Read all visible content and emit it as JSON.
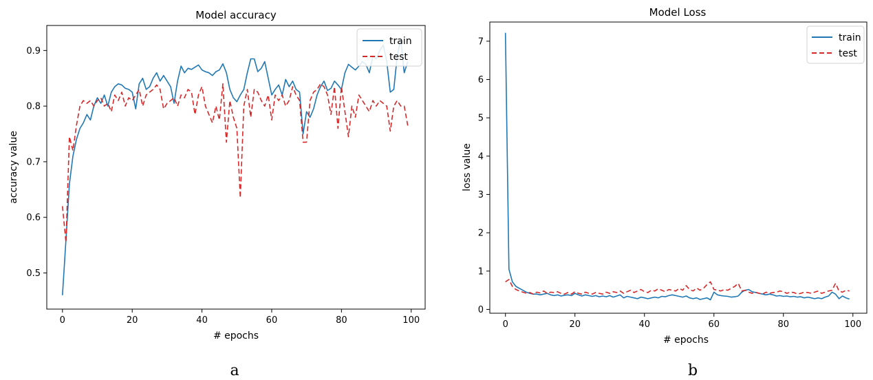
{
  "chart_data": [
    {
      "type": "line",
      "title": "Model accuracy",
      "xlabel": "# epochs",
      "ylabel": "accuracy value",
      "xlim": [
        -4.5,
        104
      ],
      "ylim": [
        0.435,
        0.945
      ],
      "xticks": [
        0,
        20,
        40,
        60,
        80,
        100
      ],
      "yticks": [
        0.5,
        0.6,
        0.7,
        0.8,
        0.9
      ],
      "xtick_labels": [
        "0",
        "20",
        "40",
        "60",
        "80",
        "100"
      ],
      "ytick_labels": [
        "0.5",
        "0.6",
        "0.7",
        "0.8",
        "0.9"
      ],
      "legend_position": "top-right",
      "caption": "a",
      "series": [
        {
          "name": "train",
          "color": "#1f77b4",
          "style": "solid",
          "x": [
            0,
            1,
            2,
            3,
            4,
            5,
            6,
            7,
            8,
            9,
            10,
            11,
            12,
            13,
            14,
            15,
            16,
            17,
            18,
            19,
            20,
            21,
            22,
            23,
            24,
            25,
            26,
            27,
            28,
            29,
            30,
            31,
            32,
            33,
            34,
            35,
            36,
            37,
            38,
            39,
            40,
            41,
            42,
            43,
            44,
            45,
            46,
            47,
            48,
            49,
            50,
            51,
            52,
            53,
            54,
            55,
            56,
            57,
            58,
            59,
            60,
            61,
            62,
            63,
            64,
            65,
            66,
            67,
            68,
            69,
            70,
            71,
            72,
            73,
            74,
            75,
            76,
            77,
            78,
            79,
            80,
            81,
            82,
            83,
            84,
            85,
            86,
            87,
            88,
            89,
            90,
            91,
            92,
            93,
            94,
            95,
            96,
            97,
            98,
            99
          ],
          "y": [
            0.46,
            0.56,
            0.66,
            0.71,
            0.74,
            0.76,
            0.77,
            0.785,
            0.775,
            0.8,
            0.815,
            0.805,
            0.82,
            0.8,
            0.825,
            0.835,
            0.84,
            0.838,
            0.832,
            0.83,
            0.825,
            0.795,
            0.84,
            0.85,
            0.83,
            0.835,
            0.85,
            0.86,
            0.845,
            0.855,
            0.845,
            0.835,
            0.805,
            0.845,
            0.872,
            0.86,
            0.868,
            0.866,
            0.87,
            0.874,
            0.865,
            0.862,
            0.86,
            0.855,
            0.862,
            0.865,
            0.876,
            0.86,
            0.83,
            0.815,
            0.808,
            0.82,
            0.83,
            0.86,
            0.885,
            0.885,
            0.862,
            0.868,
            0.88,
            0.85,
            0.82,
            0.83,
            0.838,
            0.82,
            0.848,
            0.835,
            0.845,
            0.83,
            0.825,
            0.75,
            0.79,
            0.78,
            0.795,
            0.82,
            0.835,
            0.845,
            0.828,
            0.832,
            0.845,
            0.838,
            0.83,
            0.86,
            0.875,
            0.87,
            0.865,
            0.872,
            0.88,
            0.875,
            0.86,
            0.89,
            0.885,
            0.9,
            0.91,
            0.88,
            0.825,
            0.83,
            0.89,
            0.92,
            0.86,
            0.88
          ]
        },
        {
          "name": "test",
          "color": "#d62728",
          "style": "dashed",
          "x": [
            0,
            1,
            2,
            3,
            4,
            5,
            6,
            7,
            8,
            9,
            10,
            11,
            12,
            13,
            14,
            15,
            16,
            17,
            18,
            19,
            20,
            21,
            22,
            23,
            24,
            25,
            26,
            27,
            28,
            29,
            30,
            31,
            32,
            33,
            34,
            35,
            36,
            37,
            38,
            39,
            40,
            41,
            42,
            43,
            44,
            45,
            46,
            47,
            48,
            49,
            50,
            51,
            52,
            53,
            54,
            55,
            56,
            57,
            58,
            59,
            60,
            61,
            62,
            63,
            64,
            65,
            66,
            67,
            68,
            69,
            70,
            71,
            72,
            73,
            74,
            75,
            76,
            77,
            78,
            79,
            80,
            81,
            82,
            83,
            84,
            85,
            86,
            87,
            88,
            89,
            90,
            91,
            92,
            93,
            94,
            95,
            96,
            97,
            98,
            99
          ],
          "y": [
            0.62,
            0.555,
            0.745,
            0.72,
            0.765,
            0.8,
            0.81,
            0.805,
            0.81,
            0.8,
            0.81,
            0.815,
            0.8,
            0.805,
            0.79,
            0.82,
            0.81,
            0.825,
            0.8,
            0.815,
            0.81,
            0.82,
            0.83,
            0.8,
            0.82,
            0.825,
            0.83,
            0.838,
            0.83,
            0.795,
            0.805,
            0.81,
            0.815,
            0.8,
            0.82,
            0.815,
            0.83,
            0.825,
            0.785,
            0.82,
            0.835,
            0.8,
            0.785,
            0.77,
            0.8,
            0.775,
            0.84,
            0.735,
            0.81,
            0.78,
            0.76,
            0.635,
            0.8,
            0.83,
            0.78,
            0.83,
            0.825,
            0.81,
            0.8,
            0.82,
            0.775,
            0.82,
            0.81,
            0.82,
            0.8,
            0.81,
            0.835,
            0.82,
            0.81,
            0.735,
            0.735,
            0.81,
            0.825,
            0.83,
            0.84,
            0.835,
            0.82,
            0.785,
            0.835,
            0.76,
            0.835,
            0.79,
            0.745,
            0.8,
            0.78,
            0.82,
            0.81,
            0.8,
            0.79,
            0.81,
            0.8,
            0.81,
            0.805,
            0.8,
            0.755,
            0.8,
            0.81,
            0.8,
            0.8,
            0.765
          ]
        }
      ]
    },
    {
      "type": "line",
      "title": "Model Loss",
      "xlabel": "# epochs",
      "ylabel": "loss value",
      "xlim": [
        -4.5,
        104
      ],
      "ylim": [
        -0.1,
        7.5
      ],
      "xticks": [
        0,
        20,
        40,
        60,
        80,
        100
      ],
      "yticks": [
        0,
        1,
        2,
        3,
        4,
        5,
        6,
        7
      ],
      "xtick_labels": [
        "0",
        "20",
        "40",
        "60",
        "80",
        "100"
      ],
      "ytick_labels": [
        "0",
        "1",
        "2",
        "3",
        "4",
        "5",
        "6",
        "7"
      ],
      "legend_position": "top-right",
      "caption": "b",
      "series": [
        {
          "name": "train",
          "color": "#1f77b4",
          "style": "solid",
          "x": [
            0,
            1,
            2,
            3,
            4,
            5,
            6,
            7,
            8,
            9,
            10,
            11,
            12,
            13,
            14,
            15,
            16,
            17,
            18,
            19,
            20,
            21,
            22,
            23,
            24,
            25,
            26,
            27,
            28,
            29,
            30,
            31,
            32,
            33,
            34,
            35,
            36,
            37,
            38,
            39,
            40,
            41,
            42,
            43,
            44,
            45,
            46,
            47,
            48,
            49,
            50,
            51,
            52,
            53,
            54,
            55,
            56,
            57,
            58,
            59,
            60,
            61,
            62,
            63,
            64,
            65,
            66,
            67,
            68,
            69,
            70,
            71,
            72,
            73,
            74,
            75,
            76,
            77,
            78,
            79,
            80,
            81,
            82,
            83,
            84,
            85,
            86,
            87,
            88,
            89,
            90,
            91,
            92,
            93,
            94,
            95,
            96,
            97,
            98,
            99
          ],
          "y": [
            7.22,
            1.05,
            0.72,
            0.6,
            0.55,
            0.5,
            0.45,
            0.42,
            0.4,
            0.4,
            0.38,
            0.4,
            0.42,
            0.38,
            0.36,
            0.38,
            0.35,
            0.37,
            0.38,
            0.36,
            0.42,
            0.38,
            0.35,
            0.38,
            0.36,
            0.34,
            0.36,
            0.33,
            0.35,
            0.33,
            0.36,
            0.32,
            0.35,
            0.38,
            0.3,
            0.34,
            0.32,
            0.3,
            0.28,
            0.32,
            0.3,
            0.28,
            0.3,
            0.32,
            0.3,
            0.34,
            0.33,
            0.36,
            0.38,
            0.36,
            0.34,
            0.32,
            0.35,
            0.3,
            0.28,
            0.3,
            0.26,
            0.28,
            0.3,
            0.25,
            0.45,
            0.38,
            0.36,
            0.35,
            0.34,
            0.32,
            0.33,
            0.35,
            0.45,
            0.5,
            0.52,
            0.46,
            0.44,
            0.42,
            0.4,
            0.38,
            0.4,
            0.38,
            0.35,
            0.36,
            0.34,
            0.35,
            0.33,
            0.34,
            0.32,
            0.33,
            0.3,
            0.32,
            0.3,
            0.28,
            0.3,
            0.28,
            0.32,
            0.35,
            0.45,
            0.4,
            0.28,
            0.35,
            0.3,
            0.27
          ]
        },
        {
          "name": "test",
          "color": "#d62728",
          "style": "dashed",
          "x": [
            0,
            1,
            2,
            3,
            4,
            5,
            6,
            7,
            8,
            9,
            10,
            11,
            12,
            13,
            14,
            15,
            16,
            17,
            18,
            19,
            20,
            21,
            22,
            23,
            24,
            25,
            26,
            27,
            28,
            29,
            30,
            31,
            32,
            33,
            34,
            35,
            36,
            37,
            38,
            39,
            40,
            41,
            42,
            43,
            44,
            45,
            46,
            47,
            48,
            49,
            50,
            51,
            52,
            53,
            54,
            55,
            56,
            57,
            58,
            59,
            60,
            61,
            62,
            63,
            64,
            65,
            66,
            67,
            68,
            69,
            70,
            71,
            72,
            73,
            74,
            75,
            76,
            77,
            78,
            79,
            80,
            81,
            82,
            83,
            84,
            85,
            86,
            87,
            88,
            89,
            90,
            91,
            92,
            93,
            94,
            95,
            96,
            97,
            98,
            99
          ],
          "y": [
            0.72,
            0.78,
            0.6,
            0.52,
            0.48,
            0.45,
            0.42,
            0.44,
            0.4,
            0.45,
            0.43,
            0.48,
            0.42,
            0.45,
            0.44,
            0.46,
            0.42,
            0.4,
            0.44,
            0.4,
            0.46,
            0.42,
            0.4,
            0.45,
            0.42,
            0.4,
            0.44,
            0.42,
            0.4,
            0.45,
            0.42,
            0.46,
            0.44,
            0.48,
            0.42,
            0.46,
            0.5,
            0.44,
            0.48,
            0.52,
            0.46,
            0.44,
            0.5,
            0.48,
            0.54,
            0.5,
            0.46,
            0.52,
            0.5,
            0.48,
            0.55,
            0.5,
            0.62,
            0.52,
            0.48,
            0.56,
            0.5,
            0.55,
            0.65,
            0.72,
            0.52,
            0.5,
            0.48,
            0.52,
            0.5,
            0.55,
            0.6,
            0.68,
            0.48,
            0.5,
            0.45,
            0.42,
            0.45,
            0.42,
            0.4,
            0.45,
            0.42,
            0.44,
            0.45,
            0.48,
            0.46,
            0.42,
            0.45,
            0.44,
            0.4,
            0.42,
            0.45,
            0.44,
            0.42,
            0.45,
            0.48,
            0.42,
            0.45,
            0.48,
            0.5,
            0.68,
            0.48,
            0.45,
            0.5,
            0.48
          ]
        }
      ]
    }
  ]
}
